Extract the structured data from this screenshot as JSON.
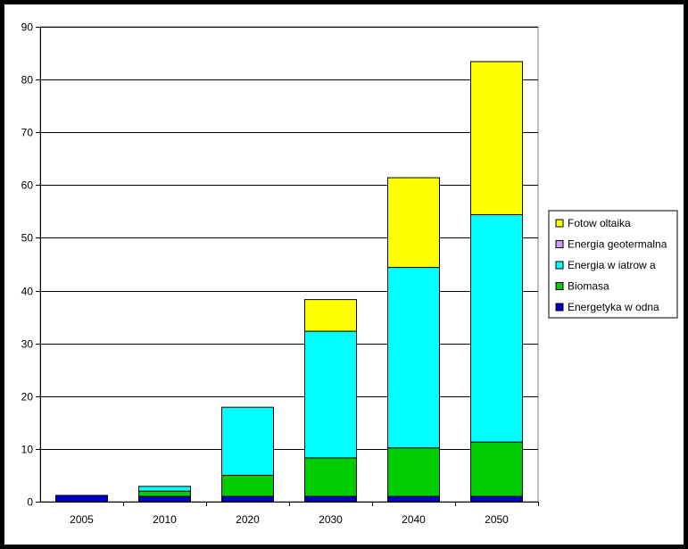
{
  "chart_data": {
    "type": "bar",
    "stacked": true,
    "title": "",
    "xlabel": "",
    "ylabel": "",
    "ylim": [
      0,
      90
    ],
    "yticks": [
      "0",
      "10",
      "20",
      "30",
      "40",
      "50",
      "60",
      "70",
      "80",
      "90"
    ],
    "grid": true,
    "legend_position": "right",
    "categories": [
      "2005",
      "2010",
      "2020",
      "2030",
      "2040",
      "2050"
    ],
    "series": [
      {
        "name": "Energetyka w odna",
        "color": "#0000cc",
        "values": [
          1.2,
          1.0,
          1.0,
          1.0,
          1.0,
          1.0
        ]
      },
      {
        "name": "Biomasa",
        "color": "#00cc00",
        "values": [
          0,
          1.0,
          4.0,
          7.3,
          9.2,
          10.3
        ]
      },
      {
        "name": "Energia w iatrow a",
        "color": "#00ffff",
        "values": [
          0,
          0.9,
          12.9,
          24.0,
          34.2,
          43.1
        ]
      },
      {
        "name": "Energia geotermalna",
        "color": "#cc99ff",
        "values": [
          0,
          0,
          0,
          0,
          0,
          0
        ]
      },
      {
        "name": "Fotow oltaika",
        "color": "#ffff00",
        "values": [
          0,
          0,
          0,
          6.0,
          17.0,
          29.0
        ]
      }
    ]
  },
  "legend_order": [
    "Fotow oltaika",
    "Energia geotermalna",
    "Energia w iatrow a",
    "Biomasa",
    "Energetyka w odna"
  ]
}
